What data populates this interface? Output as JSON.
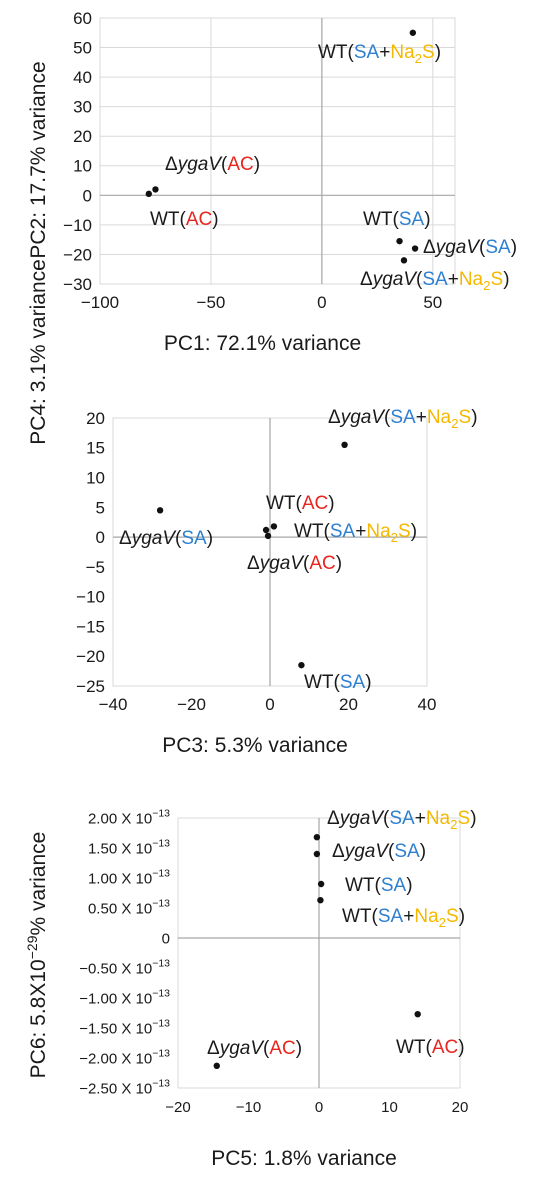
{
  "colors": {
    "sa": "#2e7fd0",
    "na2s": "#f5b800",
    "ac": "#e8251f",
    "text": "#1a1a1a",
    "grid": "#d9d9d9",
    "axis": "#a6a6a6",
    "point": "#111111"
  },
  "chart_data": [
    {
      "type": "scatter",
      "xlabel": "PC1: 72.1% variance",
      "ylabel": "PC2: 17.7% variance",
      "xlim": [
        -100,
        60
      ],
      "ylim": [
        -30,
        60
      ],
      "xticks": [
        -100,
        -50,
        0,
        50
      ],
      "yticks": [
        -30,
        -20,
        -10,
        0,
        10,
        20,
        30,
        40,
        50,
        60
      ],
      "grid": true,
      "points": [
        {
          "x": 41,
          "y": 55
        },
        {
          "x": -75,
          "y": 2
        },
        {
          "x": -78,
          "y": 0.5
        },
        {
          "x": 35,
          "y": -15.5
        },
        {
          "x": 42,
          "y": -18
        },
        {
          "x": 37,
          "y": -22
        }
      ],
      "labels": [
        {
          "parts": [
            [
              "WT(",
              "t"
            ],
            [
              "SA",
              "sa"
            ],
            [
              "+",
              "t"
            ],
            [
              "Na",
              "na"
            ],
            [
              "2",
              "nasub"
            ],
            [
              "S",
              "na"
            ],
            [
              ")",
              "t"
            ]
          ]
        },
        {
          "parts": [
            [
              "Δ",
              "t"
            ],
            [
              "ygaV",
              "ti"
            ],
            [
              "(",
              "t"
            ],
            [
              "AC",
              "ac"
            ],
            [
              ")",
              "t"
            ]
          ]
        },
        {
          "parts": [
            [
              "WT(",
              "t"
            ],
            [
              "AC",
              "ac"
            ],
            [
              ")",
              "t"
            ]
          ]
        },
        {
          "parts": [
            [
              "WT(",
              "t"
            ],
            [
              "SA",
              "sa"
            ],
            [
              ")",
              "t"
            ]
          ]
        },
        {
          "parts": [
            [
              "Δ",
              "t"
            ],
            [
              "ygaV",
              "ti"
            ],
            [
              "(",
              "t"
            ],
            [
              "SA",
              "sa"
            ],
            [
              ")",
              "t"
            ]
          ]
        },
        {
          "parts": [
            [
              "Δ",
              "t"
            ],
            [
              "ygaV",
              "ti"
            ],
            [
              "(",
              "t"
            ],
            [
              "SA",
              "sa"
            ],
            [
              "+",
              "t"
            ],
            [
              "Na",
              "na"
            ],
            [
              "2",
              "nasub"
            ],
            [
              "S",
              "na"
            ],
            [
              ")",
              "t"
            ]
          ]
        }
      ]
    },
    {
      "type": "scatter",
      "xlabel": "PC3: 5.3% variance",
      "ylabel": "PC4: 3.1% variance",
      "xlim": [
        -40,
        40
      ],
      "ylim": [
        -25,
        20
      ],
      "xticks": [
        -40,
        -20,
        0,
        20,
        40
      ],
      "yticks": [
        -25,
        -20,
        -15,
        -10,
        -5,
        0,
        5,
        10,
        15,
        20
      ],
      "grid": false,
      "points": [
        {
          "x": 19,
          "y": 15.5
        },
        {
          "x": -28,
          "y": 4.5
        },
        {
          "x": 1,
          "y": 1.8
        },
        {
          "x": -1,
          "y": 1.2
        },
        {
          "x": -0.5,
          "y": 0.2
        },
        {
          "x": 8,
          "y": -21.5
        }
      ],
      "labels": [
        {
          "parts": [
            [
              "Δ",
              "t"
            ],
            [
              "ygaV",
              "ti"
            ],
            [
              "(",
              "t"
            ],
            [
              "SA",
              "sa"
            ],
            [
              "+",
              "t"
            ],
            [
              "Na",
              "na"
            ],
            [
              "2",
              "nasub"
            ],
            [
              "S",
              "na"
            ],
            [
              ")",
              "t"
            ]
          ]
        },
        {
          "parts": [
            [
              "Δ",
              "t"
            ],
            [
              "ygaV",
              "ti"
            ],
            [
              "(",
              "t"
            ],
            [
              "SA",
              "sa"
            ],
            [
              ")",
              "t"
            ]
          ]
        },
        {
          "parts": [
            [
              "WT(",
              "t"
            ],
            [
              "AC",
              "ac"
            ],
            [
              ")",
              "t"
            ]
          ]
        },
        {
          "parts": [
            [
              "WT(",
              "t"
            ],
            [
              "SA",
              "sa"
            ],
            [
              "+",
              "t"
            ],
            [
              "Na",
              "na"
            ],
            [
              "2",
              "nasub"
            ],
            [
              "S",
              "na"
            ],
            [
              ")",
              "t"
            ]
          ]
        },
        {
          "parts": [
            [
              "Δ",
              "t"
            ],
            [
              "ygaV",
              "ti"
            ],
            [
              "(",
              "t"
            ],
            [
              "AC",
              "ac"
            ],
            [
              ")",
              "t"
            ]
          ]
        },
        {
          "parts": [
            [
              "WT(",
              "t"
            ],
            [
              "SA",
              "sa"
            ],
            [
              ")",
              "t"
            ]
          ]
        }
      ]
    },
    {
      "type": "scatter",
      "xlabel": "PC5: 1.8% variance",
      "ylabel_parts": [
        [
          "PC6: 5.8X10",
          "t"
        ],
        [
          "−29",
          "sup"
        ],
        [
          "% variance",
          "t"
        ]
      ],
      "xlim": [
        -20,
        20
      ],
      "ylim": [
        -2.5e-13,
        2e-13
      ],
      "xticks": [
        -20,
        -10,
        0,
        10,
        20
      ],
      "yticks": [
        -2.5e-13,
        -2e-13,
        -1.5e-13,
        -1e-13,
        -5e-14,
        0,
        5e-14,
        1e-13,
        1.5e-13,
        2e-13
      ],
      "ytick_labels": [
        [
          "−2.50 X 10",
          "−13"
        ],
        [
          "−2.00 X 10",
          "−13"
        ],
        [
          "−1.50 X 10",
          "−13"
        ],
        [
          "−1.00 X 10",
          "−13"
        ],
        [
          "−0.50 X 10",
          "−13"
        ],
        [
          "0",
          ""
        ],
        [
          "0.50 X 10",
          "−13"
        ],
        [
          "1.00 X 10",
          "−13"
        ],
        [
          "1.50 X 10",
          "−13"
        ],
        [
          "2.00 X 10",
          "−13"
        ]
      ],
      "grid": false,
      "points": [
        {
          "x": -0.3,
          "y": 1.68e-13
        },
        {
          "x": -0.3,
          "y": 1.4e-13
        },
        {
          "x": 0.3,
          "y": 9e-14
        },
        {
          "x": 0.2,
          "y": 6.3e-14
        },
        {
          "x": 14,
          "y": -1.27e-13
        },
        {
          "x": -14.5,
          "y": -2.13e-13
        }
      ],
      "labels": [
        {
          "parts": [
            [
              "Δ",
              "t"
            ],
            [
              "ygaV",
              "ti"
            ],
            [
              "(",
              "t"
            ],
            [
              "SA",
              "sa"
            ],
            [
              "+",
              "t"
            ],
            [
              "Na",
              "na"
            ],
            [
              "2",
              "nasub"
            ],
            [
              "S",
              "na"
            ],
            [
              ")",
              "t"
            ]
          ]
        },
        {
          "parts": [
            [
              "Δ",
              "t"
            ],
            [
              "ygaV",
              "ti"
            ],
            [
              "(",
              "t"
            ],
            [
              "SA",
              "sa"
            ],
            [
              ")",
              "t"
            ]
          ]
        },
        {
          "parts": [
            [
              "WT(",
              "t"
            ],
            [
              "SA",
              "sa"
            ],
            [
              ")",
              "t"
            ]
          ]
        },
        {
          "parts": [
            [
              "WT(",
              "t"
            ],
            [
              "SA",
              "sa"
            ],
            [
              "+",
              "t"
            ],
            [
              "Na",
              "na"
            ],
            [
              "2",
              "nasub"
            ],
            [
              "S",
              "na"
            ],
            [
              ")",
              "t"
            ]
          ]
        },
        {
          "parts": [
            [
              "WT(",
              "t"
            ],
            [
              "AC",
              "ac"
            ],
            [
              ")",
              "t"
            ]
          ]
        },
        {
          "parts": [
            [
              "Δ",
              "t"
            ],
            [
              "ygaV",
              "ti"
            ],
            [
              "(",
              "t"
            ],
            [
              "AC",
              "ac"
            ],
            [
              ")",
              "t"
            ]
          ]
        }
      ]
    }
  ]
}
